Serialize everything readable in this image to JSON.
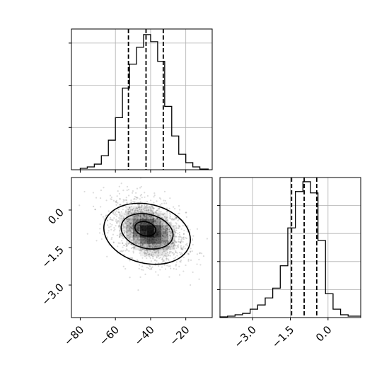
{
  "chart_data": [
    {
      "panel": "marginal-x",
      "type": "histogram",
      "grid": true,
      "xlim": [
        -85,
        -5
      ],
      "ylim": [
        0,
        1.0
      ],
      "bins": [
        {
          "x0": -80,
          "x1": -76,
          "v": 0.01
        },
        {
          "x0": -76,
          "x1": -72,
          "v": 0.02
        },
        {
          "x0": -72,
          "x1": -68,
          "v": 0.04
        },
        {
          "x0": -68,
          "x1": -64,
          "v": 0.1
        },
        {
          "x0": -64,
          "x1": -60,
          "v": 0.21
        },
        {
          "x0": -60,
          "x1": -56,
          "v": 0.37
        },
        {
          "x0": -56,
          "x1": -52,
          "v": 0.58
        },
        {
          "x0": -52,
          "x1": -48,
          "v": 0.75
        },
        {
          "x0": -48,
          "x1": -44,
          "v": 0.87
        },
        {
          "x0": -44,
          "x1": -40,
          "v": 0.96
        },
        {
          "x0": -40,
          "x1": -36,
          "v": 0.91
        },
        {
          "x0": -36,
          "x1": -32,
          "v": 0.77
        },
        {
          "x0": -32,
          "x1": -28,
          "v": 0.45
        },
        {
          "x0": -28,
          "x1": -24,
          "v": 0.24
        },
        {
          "x0": -24,
          "x1": -20,
          "v": 0.11
        },
        {
          "x0": -20,
          "x1": -16,
          "v": 0.05
        },
        {
          "x0": -16,
          "x1": -12,
          "v": 0.02
        },
        {
          "x0": -12,
          "x1": -7,
          "v": 0.005
        }
      ],
      "quantile_lines": [
        -52.6,
        -42.6,
        -32.8
      ]
    },
    {
      "panel": "joint",
      "type": "density-contour",
      "xlim": [
        -85,
        -5
      ],
      "ylim": [
        -4.3,
        1.3
      ],
      "xticks": [
        -80,
        -60,
        -40,
        -20
      ],
      "xticklabels": [
        "−80",
        "−60",
        "−40",
        "−20"
      ],
      "yticks": [
        0.0,
        -1.5,
        -3.0
      ],
      "yticklabels": [
        "0.0",
        "−1.5",
        "−3.0"
      ],
      "density_center": {
        "x": -41,
        "y": -0.85
      },
      "contour_levels": [
        {
          "cx": -43,
          "cy": -0.75,
          "rx": 6,
          "ry": 0.28,
          "rot": -14
        },
        {
          "cx": -42,
          "cy": -0.85,
          "rx": 15,
          "ry": 0.68,
          "rot": -14
        },
        {
          "cx": -42,
          "cy": -0.95,
          "rx": 25,
          "ry": 1.18,
          "rot": -14
        }
      ]
    },
    {
      "panel": "marginal-y",
      "type": "histogram",
      "grid": true,
      "xlim": [
        -4.3,
        1.3
      ],
      "ylim": [
        0,
        1.0
      ],
      "xticks": [
        -3.0,
        -1.5,
        0.0
      ],
      "xticklabels": [
        "−3.0",
        "−1.5",
        "0.0"
      ],
      "bins": [
        {
          "x0": -4.3,
          "x1": -4.0,
          "v": 0.005
        },
        {
          "x0": -4.0,
          "x1": -3.7,
          "v": 0.01
        },
        {
          "x0": -3.7,
          "x1": -3.4,
          "v": 0.02
        },
        {
          "x0": -3.4,
          "x1": -3.1,
          "v": 0.03
        },
        {
          "x0": -3.1,
          "x1": -2.8,
          "v": 0.06
        },
        {
          "x0": -2.8,
          "x1": -2.5,
          "v": 0.09
        },
        {
          "x0": -2.5,
          "x1": -2.2,
          "v": 0.14
        },
        {
          "x0": -2.2,
          "x1": -1.9,
          "v": 0.21
        },
        {
          "x0": -1.9,
          "x1": -1.6,
          "v": 0.37
        },
        {
          "x0": -1.6,
          "x1": -1.3,
          "v": 0.64
        },
        {
          "x0": -1.3,
          "x1": -1.0,
          "v": 0.9
        },
        {
          "x0": -1.0,
          "x1": -0.7,
          "v": 0.97
        },
        {
          "x0": -0.7,
          "x1": -0.4,
          "v": 0.89
        },
        {
          "x0": -0.4,
          "x1": -0.1,
          "v": 0.55
        },
        {
          "x0": -0.1,
          "x1": 0.2,
          "v": 0.17
        },
        {
          "x0": 0.2,
          "x1": 0.5,
          "v": 0.06
        },
        {
          "x0": 0.5,
          "x1": 0.8,
          "v": 0.02
        },
        {
          "x0": 0.8,
          "x1": 1.3,
          "v": 0.01
        }
      ],
      "quantile_lines": [
        -1.45,
        -0.95,
        -0.45
      ]
    }
  ]
}
